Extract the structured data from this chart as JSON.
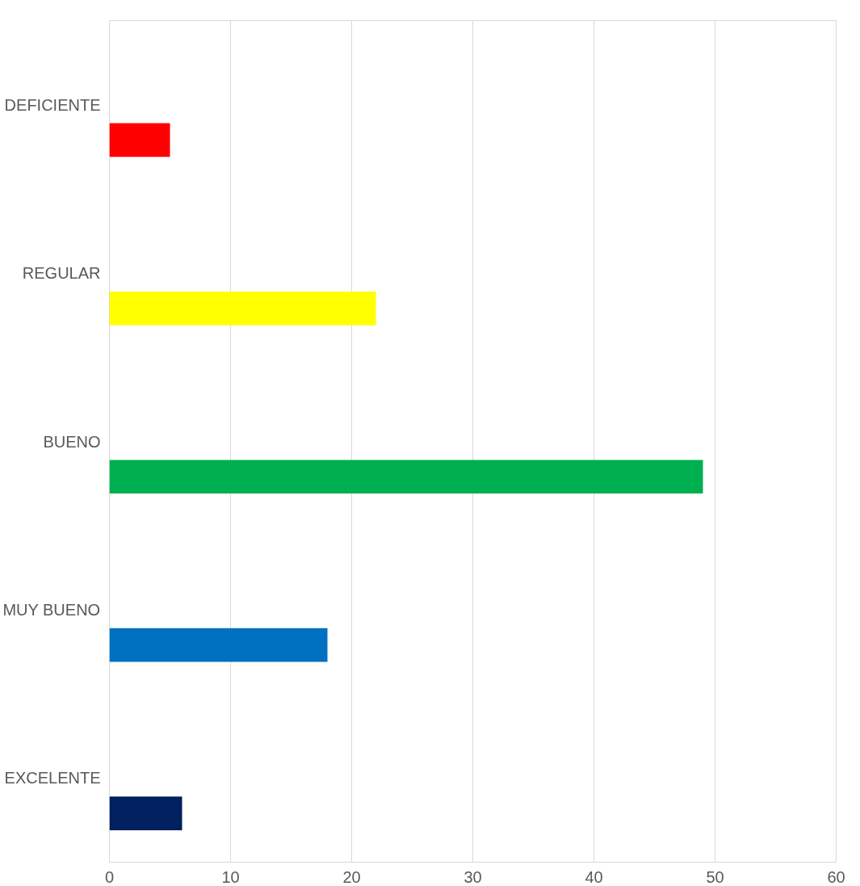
{
  "chart_data": {
    "type": "bar",
    "orientation": "horizontal",
    "categories": [
      "DEFICIENTE",
      "REGULAR",
      "BUENO",
      "MUY BUENO",
      "EXCELENTE"
    ],
    "values": [
      5,
      22,
      49,
      18,
      6
    ],
    "colors": [
      "#ff0000",
      "#ffff00",
      "#00b050",
      "#0070c0",
      "#002060"
    ],
    "xlim": [
      0,
      60
    ],
    "xticks": [
      0,
      10,
      20,
      30,
      40,
      50,
      60
    ],
    "grid": "x"
  }
}
